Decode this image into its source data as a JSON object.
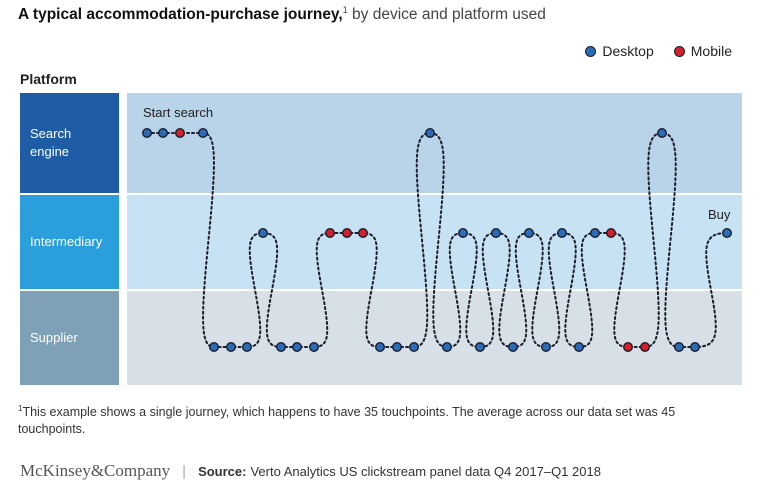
{
  "title": {
    "main": "A typical accommodation-purchase journey,",
    "sup": "1",
    "sub": "by device and platform used"
  },
  "legend": [
    {
      "label": "Desktop",
      "color": "#2a6cb8"
    },
    {
      "label": "Mobile",
      "color": "#d3202c"
    }
  ],
  "platform_label": "Platform",
  "rows": [
    {
      "label_lines": [
        "Search",
        "engine"
      ]
    },
    {
      "label_lines": [
        "Intermediary"
      ]
    },
    {
      "label_lines": [
        "Supplier"
      ]
    }
  ],
  "annotations": {
    "start": "Start search",
    "end": "Buy"
  },
  "journey": [
    {
      "row": 0,
      "device": "Desktop"
    },
    {
      "row": 0,
      "device": "Desktop"
    },
    {
      "row": 0,
      "device": "Mobile"
    },
    {
      "row": 0,
      "device": "Desktop"
    },
    {
      "row": 2,
      "device": "Desktop"
    },
    {
      "row": 2,
      "device": "Desktop"
    },
    {
      "row": 2,
      "device": "Desktop"
    },
    {
      "row": 1,
      "device": "Desktop"
    },
    {
      "row": 2,
      "device": "Desktop"
    },
    {
      "row": 2,
      "device": "Desktop"
    },
    {
      "row": 2,
      "device": "Desktop"
    },
    {
      "row": 1,
      "device": "Mobile"
    },
    {
      "row": 1,
      "device": "Mobile"
    },
    {
      "row": 1,
      "device": "Mobile"
    },
    {
      "row": 2,
      "device": "Desktop"
    },
    {
      "row": 2,
      "device": "Desktop"
    },
    {
      "row": 2,
      "device": "Desktop"
    },
    {
      "row": 0,
      "device": "Desktop"
    },
    {
      "row": 2,
      "device": "Desktop"
    },
    {
      "row": 1,
      "device": "Desktop"
    },
    {
      "row": 2,
      "device": "Desktop"
    },
    {
      "row": 1,
      "device": "Desktop"
    },
    {
      "row": 2,
      "device": "Desktop"
    },
    {
      "row": 1,
      "device": "Desktop"
    },
    {
      "row": 2,
      "device": "Desktop"
    },
    {
      "row": 1,
      "device": "Desktop"
    },
    {
      "row": 2,
      "device": "Desktop"
    },
    {
      "row": 1,
      "device": "Desktop"
    },
    {
      "row": 1,
      "device": "Mobile"
    },
    {
      "row": 2,
      "device": "Mobile"
    },
    {
      "row": 2,
      "device": "Mobile"
    },
    {
      "row": 0,
      "device": "Desktop"
    },
    {
      "row": 2,
      "device": "Desktop"
    },
    {
      "row": 2,
      "device": "Desktop"
    },
    {
      "row": 1,
      "device": "Desktop"
    }
  ],
  "footnote": {
    "sup": "1",
    "text": "This example shows a single journey, which happens to have 35 touchpoints. The average across our data set was 45 touchpoints."
  },
  "footer": {
    "logo": "McKinsey&Company",
    "source_label": "Source:",
    "source_text": "Verto Analytics US clickstream panel data Q4 2017–Q1 2018"
  }
}
